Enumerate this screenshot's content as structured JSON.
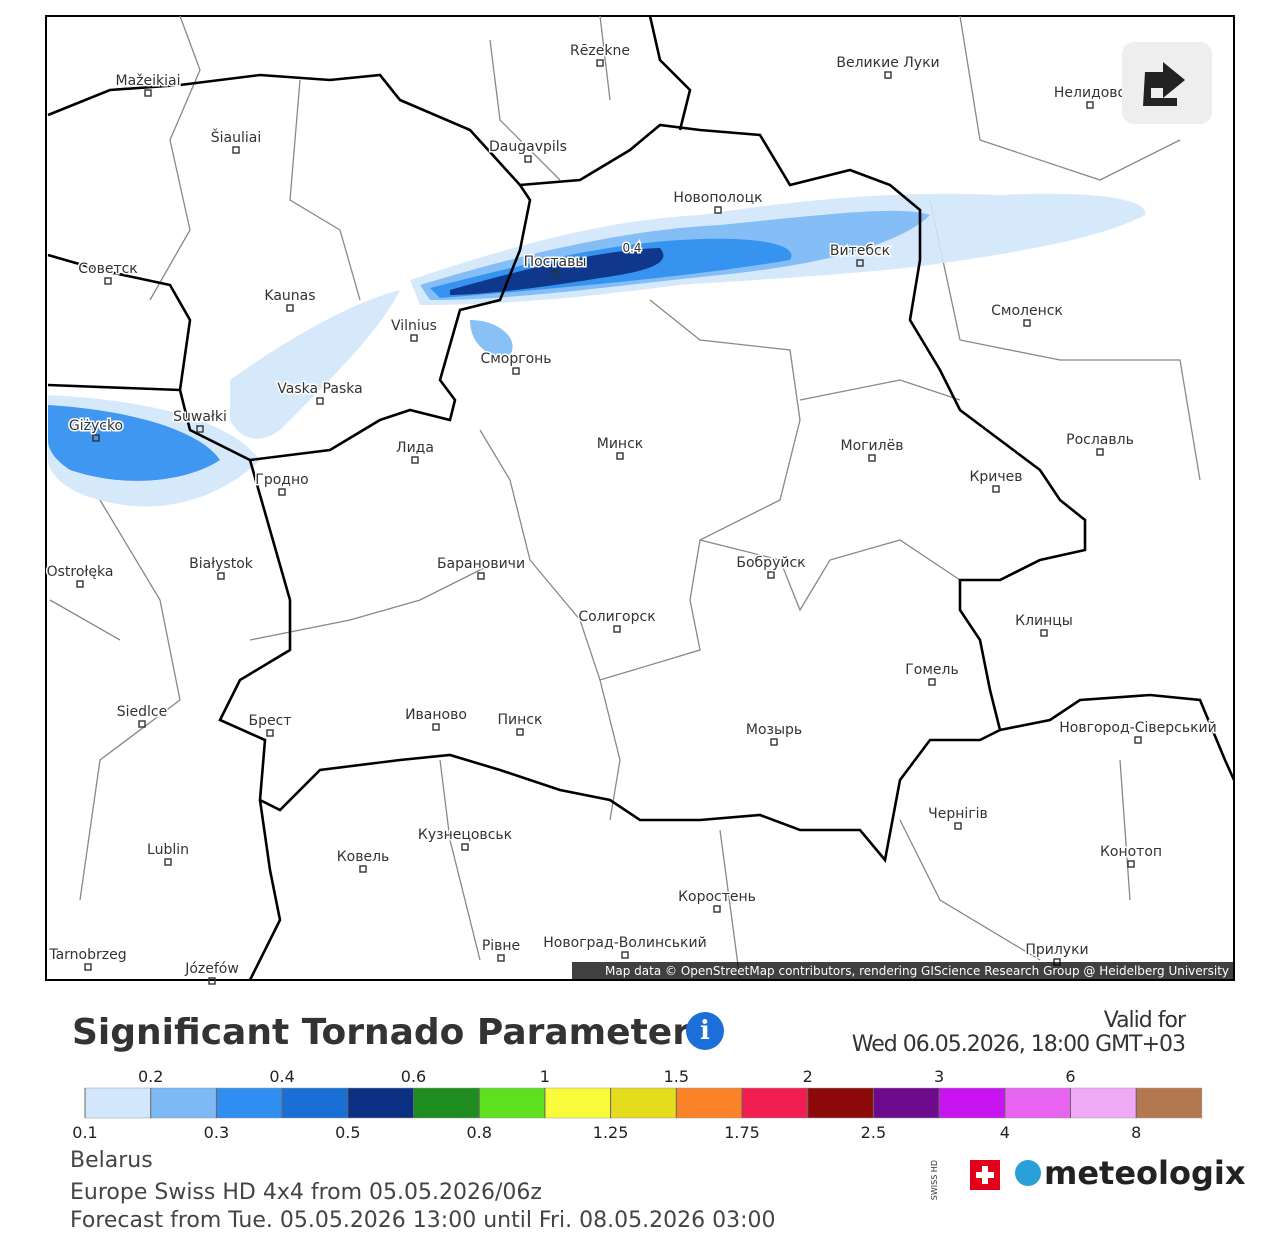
{
  "map": {
    "cities": [
      "Rēzekne",
      "Великие Луки",
      "Mažeikiai",
      "Šiauliai",
      "Daugavpils",
      "Новополоцк",
      "Нелидово",
      "Витебск",
      "Поставы",
      "Советск",
      "Kaunas",
      "Vilnius",
      "Смоленск",
      "Сморгонь",
      "Vaska Paska",
      "Giżycko",
      "Suwałki",
      "Лида",
      "Минск",
      "Могилёв",
      "Рославль",
      "Гродно",
      "Кричев",
      "Białystok",
      "Ostrołęka",
      "Барановичи",
      "Бобруйск",
      "Солигорск",
      "Клинцы",
      "Гомель",
      "Siedlce",
      "Брест",
      "Иваново",
      "Пинск",
      "Мозырь",
      "Новгород-Сіверський",
      "Кузнецовськ",
      "Чернігів",
      "Ковель",
      "Lublin",
      "Конотоп",
      "Коростень",
      "Рівне",
      "Новоград-Волинський",
      "Прилуки",
      "Tarnobrzeg",
      "Józefów"
    ],
    "contour_label": "0.4",
    "attribution": "Map data © OpenStreetMap contributors, rendering GIScience Research Group @ Heidelberg University"
  },
  "header": {
    "title": "Significant Tornado Parameter",
    "valid_label": "Valid for",
    "valid_time": "Wed 06.05.2026, 18:00 GMT+03"
  },
  "legend": {
    "boundaries": [
      0.1,
      0.2,
      0.3,
      0.4,
      0.5,
      0.6,
      0.8,
      1,
      1.25,
      1.5,
      1.75,
      2,
      2.5,
      3,
      4,
      6,
      8
    ],
    "colors": [
      "#d2e7fb",
      "#7cb9f5",
      "#2f8ef0",
      "#1a6fd6",
      "#0b2f82",
      "#1e8c1e",
      "#5ee01e",
      "#fafa3c",
      "#e6dc1e",
      "#fa8228",
      "#f01e50",
      "#8c0a0a",
      "#6e0a8c",
      "#c814f0",
      "#e664f0",
      "#f0aaf5",
      "#b47850"
    ]
  },
  "footer": {
    "region": "Belarus",
    "model": "Europe Swiss HD 4x4 from 05.05.2026/06z",
    "forecast": "Forecast from Tue. 05.05.2026 13:00 until Fri. 08.05.2026 03:00",
    "brand": "meteologix",
    "badge": "SWISS HD"
  }
}
